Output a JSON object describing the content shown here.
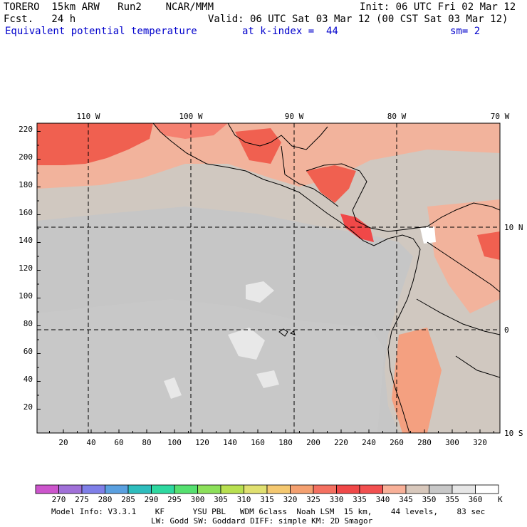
{
  "header": {
    "model": "TORERO  15km ARW   Run2    NCAR/MMM",
    "init": "Init: 06 UTC Fri 02 Mar 12",
    "fcst": "Fcst.   24 h",
    "valid": "Valid: 06 UTC Sat 03 Mar 12 (00 CST Sat 03 Mar 12)",
    "field": "Equivalent potential temperature",
    "level": "at k-index =  44",
    "smooth": "sm= 2"
  },
  "axes": {
    "top_lon": [
      "110 W",
      "100 W",
      "90 W",
      "80 W",
      "70 W"
    ],
    "right_lat": [
      "10 N",
      "0",
      "10 S"
    ],
    "y_ticks": [
      "220",
      "200",
      "180",
      "160",
      "140",
      "120",
      "100",
      "80",
      "60",
      "40",
      "20"
    ],
    "x_ticks": [
      "20",
      "40",
      "60",
      "80",
      "100",
      "120",
      "140",
      "160",
      "180",
      "200",
      "220",
      "240",
      "260",
      "280",
      "300",
      "320"
    ]
  },
  "colorbar": {
    "labels": [
      "270",
      "275",
      "280",
      "285",
      "290",
      "295",
      "300",
      "305",
      "310",
      "315",
      "320",
      "325",
      "330",
      "335",
      "340",
      "345",
      "350",
      "355",
      "360"
    ],
    "unit": "K",
    "colors": [
      "#cc55cc",
      "#a070d8",
      "#7f7fe8",
      "#5aa0e0",
      "#2ebdbd",
      "#2ed8a0",
      "#55e070",
      "#8ce05a",
      "#b8e050",
      "#e0e070",
      "#f4c870",
      "#f4a070",
      "#f47060",
      "#f04848",
      "#f25050",
      "#f8b098",
      "#d8c8bc",
      "#c8c8c8",
      "#e6e6e6",
      "#ffffff"
    ]
  },
  "footer": {
    "line1": "Model Info: V3.3.1    KF      YSU PBL   WDM 6class  Noah LSM  15 km,    44 levels,    83 sec",
    "line2": "LW: Godd SW: Goddard DIFF: simple KM: 2D Smagor"
  }
}
